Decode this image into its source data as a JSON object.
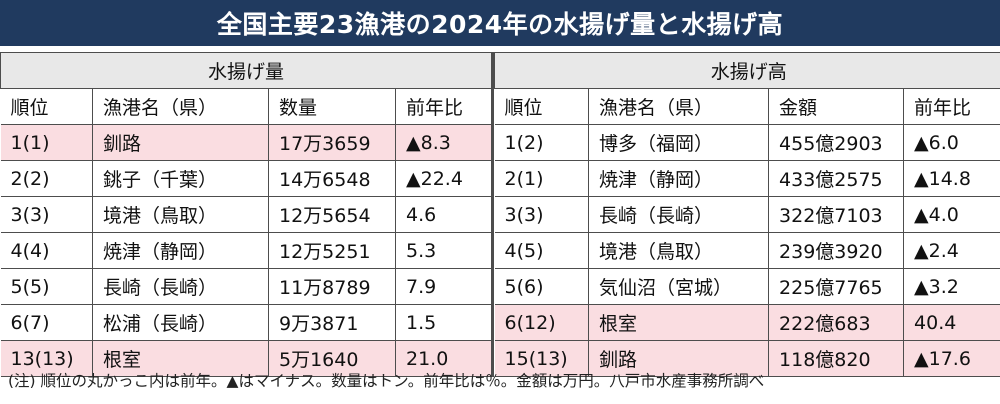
{
  "title": "全国主要23漁港の2024年の水揚げ量と水揚げ高",
  "volume": {
    "heading": "水揚げ量",
    "columns": [
      "順位",
      "漁港名（県）",
      "数量",
      "前年比"
    ],
    "rows": [
      {
        "rank": "1(1)",
        "port": "釧路",
        "value": "17万3659",
        "yoy": "▲8.3"
      },
      {
        "rank": "2(2)",
        "port": "銚子（千葉）",
        "value": "14万6548",
        "yoy": "▲22.4"
      },
      {
        "rank": "3(3)",
        "port": "境港（鳥取）",
        "value": "12万5654",
        "yoy": "4.6"
      },
      {
        "rank": "4(4)",
        "port": "焼津（静岡）",
        "value": "12万5251",
        "yoy": "5.3"
      },
      {
        "rank": "5(5)",
        "port": "長崎（長崎）",
        "value": "11万8789",
        "yoy": "7.9"
      },
      {
        "rank": "6(7)",
        "port": "松浦（長崎）",
        "value": "9万3871",
        "yoy": "1.5"
      },
      {
        "rank": "13(13)",
        "port": "根室",
        "value": "5万1640",
        "yoy": "21.0"
      }
    ]
  },
  "amount": {
    "heading": "水揚げ高",
    "columns": [
      "順位",
      "漁港名（県）",
      "金額",
      "前年比"
    ],
    "rows": [
      {
        "rank": "1(2)",
        "port": "博多（福岡）",
        "value": "455億2903",
        "yoy": "▲6.0"
      },
      {
        "rank": "2(1)",
        "port": "焼津（静岡）",
        "value": "433億2575",
        "yoy": "▲14.8"
      },
      {
        "rank": "3(3)",
        "port": "長崎（長崎）",
        "value": "322億7103",
        "yoy": "▲4.0"
      },
      {
        "rank": "4(5)",
        "port": "境港（鳥取）",
        "value": "239億3920",
        "yoy": "▲2.4"
      },
      {
        "rank": "5(6)",
        "port": "気仙沼（宮城）",
        "value": "225億7765",
        "yoy": "▲3.2"
      },
      {
        "rank": "6(12)",
        "port": "根室",
        "value": "222億683",
        "yoy": "40.4"
      },
      {
        "rank": "15(13)",
        "port": "釧路",
        "value": "118億820",
        "yoy": "▲17.6"
      }
    ]
  },
  "note": "(注) 順位の丸かっこ内は前年。▲はマイナス。数量はトン。前年比は％。金額は万円。八戸市水産事務所調べ",
  "colors": {
    "banner": "#203a5f",
    "group_header": "#e8e8e8",
    "highlight_row": "#fadde1"
  }
}
